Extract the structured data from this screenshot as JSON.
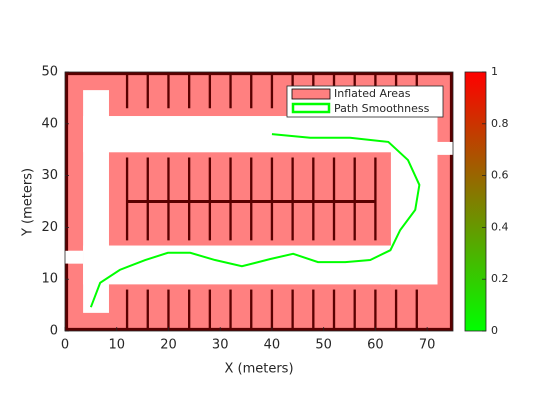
{
  "chart_data": {
    "type": "line",
    "xlabel": "X (meters)",
    "ylabel": "Y (meters)",
    "xlim": [
      0,
      75
    ],
    "ylim": [
      0,
      50
    ],
    "xticks": [
      0,
      10,
      20,
      30,
      40,
      50,
      60,
      70
    ],
    "yticks": [
      0,
      10,
      20,
      30,
      40,
      50
    ],
    "map": {
      "name": "Inflated Areas",
      "color": "#ff8080"
    },
    "series": [
      {
        "name": "Path Smoothness",
        "color": "#00ff00",
        "x": [
          5.0,
          6.8,
          10.6,
          15.5,
          19.9,
          24.2,
          29.0,
          34.2,
          39.7,
          44.1,
          48.9,
          54.2,
          59.0,
          62.9,
          64.8,
          67.7,
          68.5,
          66.3,
          62.5,
          55.1,
          47.4,
          40.0
        ],
        "values": [
          4.6,
          9.3,
          11.8,
          13.7,
          15.1,
          15.1,
          13.7,
          12.5,
          13.9,
          14.9,
          13.3,
          13.3,
          13.7,
          15.6,
          19.5,
          23.4,
          28.2,
          33.0,
          36.5,
          37.3,
          37.3,
          38.0
        ]
      }
    ],
    "colorbar": {
      "lim": [
        0,
        1
      ],
      "ticks": [
        0,
        0.2,
        0.4,
        0.6,
        0.8,
        1
      ],
      "colors": [
        "#00ff00",
        "#ff0000"
      ]
    }
  }
}
